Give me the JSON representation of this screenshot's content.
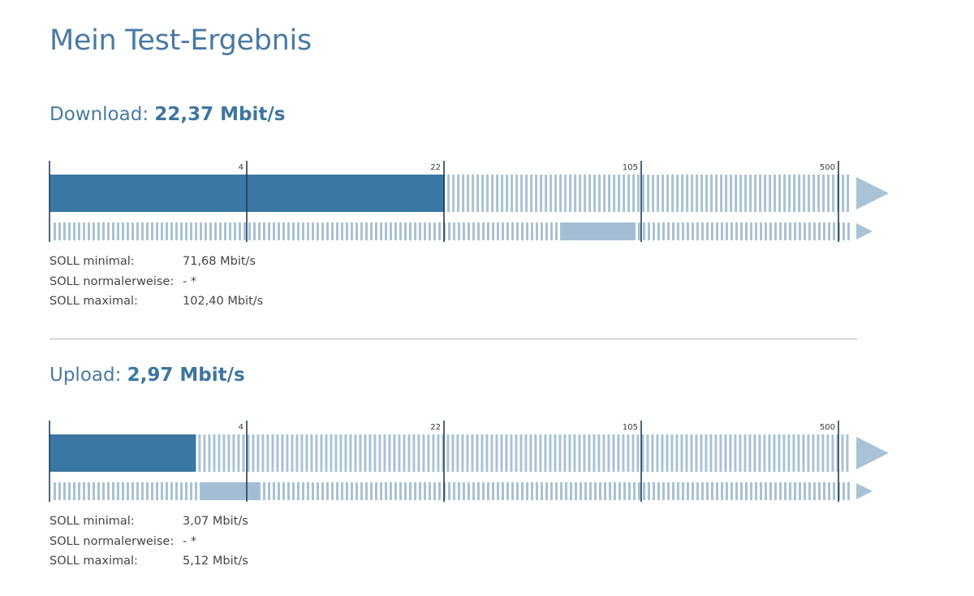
{
  "page": {
    "title": "Mein Test-Ergebnis"
  },
  "scale_ticks": [
    "4",
    "22",
    "105",
    "500"
  ],
  "download": {
    "label": "Download:",
    "value": "22,37 Mbit/s",
    "measured_mbit": 22.37,
    "soll": [
      {
        "label": "SOLL minimal:",
        "value": "71,68 Mbit/s"
      },
      {
        "label": "SOLL normalerweise:",
        "value": "- *"
      },
      {
        "label": "SOLL maximal:",
        "value": "102,40 Mbit/s"
      }
    ],
    "range_mbit": [
      71.68,
      102.4
    ]
  },
  "upload": {
    "label": "Upload:",
    "value": "2,97 Mbit/s",
    "measured_mbit": 2.97,
    "soll": [
      {
        "label": "SOLL minimal:",
        "value": "3,07 Mbit/s"
      },
      {
        "label": "SOLL normalerweise:",
        "value": "- *"
      },
      {
        "label": "SOLL maximal:",
        "value": "5,12 Mbit/s"
      }
    ],
    "range_mbit": [
      3.07,
      5.12
    ]
  },
  "colors": {
    "bar": "#3a77a3",
    "stripe": "#a9c2d6",
    "range": "#a3bdd4",
    "tick": "#1f3f58",
    "title": "#4a7aa3"
  }
}
